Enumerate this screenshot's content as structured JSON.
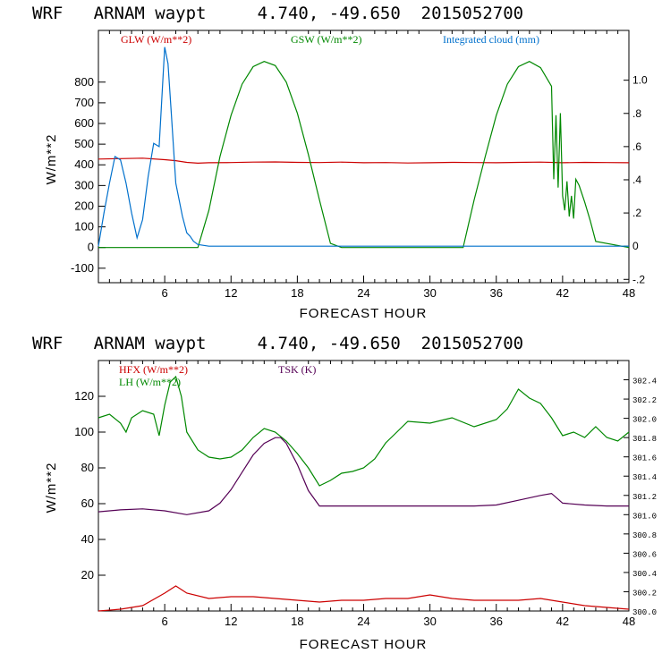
{
  "chart_data": [
    {
      "type": "line",
      "title": "WRF   ARNAM waypt     4.740, -49.650  2015052700",
      "xlabel": "FORECAST HOUR",
      "ylabel": "W/m**2",
      "xlim": [
        0,
        48
      ],
      "ylim": [
        -170,
        1050
      ],
      "y2lim": [
        -0.22,
        1.3
      ],
      "x_ticks": [
        "6",
        "12",
        "18",
        "24",
        "30",
        "36",
        "42",
        "48"
      ],
      "y_ticks": [
        "-100",
        "0",
        "100",
        "200",
        "300",
        "400",
        "500",
        "600",
        "700",
        "800"
      ],
      "y2_ticks": [
        "-.2",
        "0",
        ".2",
        ".4",
        ".6",
        ".8",
        "1.0"
      ],
      "grid": false,
      "legend_position": "top",
      "colors": {
        "glw": "#cc0000",
        "gsw": "#008800",
        "cloud": "#0070cc"
      },
      "series": [
        {
          "name": "GLW (W/m**2)",
          "axis": "left",
          "x": [
            0,
            2,
            4,
            6,
            7,
            8,
            9,
            10,
            12,
            14,
            16,
            18,
            20,
            22,
            24,
            26,
            28,
            30,
            32,
            34,
            36,
            38,
            40,
            42,
            44,
            46,
            48
          ],
          "y": [
            428,
            430,
            432,
            425,
            420,
            412,
            408,
            410,
            411,
            413,
            414,
            412,
            411,
            413,
            410,
            411,
            409,
            410,
            412,
            411,
            410,
            412,
            413,
            410,
            412,
            411,
            410
          ]
        },
        {
          "name": "GSW (W/m**2)",
          "axis": "left",
          "x": [
            0,
            9,
            10,
            11,
            12,
            13,
            14,
            15,
            16,
            17,
            18,
            19,
            20,
            21,
            22,
            33,
            34,
            35,
            36,
            37,
            38,
            39,
            40,
            41,
            41.2,
            41.4,
            41.6,
            41.8,
            42,
            42.2,
            42.4,
            42.6,
            42.8,
            43,
            43.2,
            43.5,
            44,
            44.5,
            45,
            48
          ],
          "y": [
            0,
            0,
            180,
            440,
            640,
            790,
            875,
            900,
            880,
            800,
            650,
            450,
            230,
            20,
            0,
            0,
            230,
            440,
            640,
            790,
            875,
            900,
            870,
            780,
            330,
            640,
            290,
            650,
            250,
            180,
            320,
            150,
            250,
            140,
            330,
            300,
            220,
            130,
            30,
            0
          ]
        },
        {
          "name": "Integrated cloud (mm)",
          "axis": "right",
          "x": [
            0,
            0.5,
            1,
            1.5,
            2,
            2.5,
            3,
            3.5,
            4,
            4.5,
            5,
            5.5,
            6,
            6.3,
            6.6,
            7,
            7.3,
            7.6,
            8,
            8.3,
            8.6,
            9,
            10,
            48
          ],
          "y": [
            0.0,
            0.2,
            0.38,
            0.54,
            0.52,
            0.38,
            0.2,
            0.05,
            0.16,
            0.42,
            0.62,
            0.6,
            1.2,
            1.1,
            0.8,
            0.38,
            0.28,
            0.18,
            0.08,
            0.06,
            0.03,
            0.01,
            0.0,
            0.0
          ]
        }
      ]
    },
    {
      "type": "line",
      "title": "WRF   ARNAM waypt     4.740, -49.650  2015052700",
      "xlabel": "FORECAST HOUR",
      "ylabel": "W/m**2",
      "xlim": [
        0,
        48
      ],
      "ylim": [
        0,
        140
      ],
      "y2lim": [
        300.0,
        302.6
      ],
      "x_ticks": [
        "6",
        "12",
        "18",
        "24",
        "30",
        "36",
        "42",
        "48"
      ],
      "y_ticks": [
        "20",
        "40",
        "60",
        "80",
        "100",
        "120"
      ],
      "y2_ticks": [
        "300.0",
        "300.2",
        "300.4",
        "300.6",
        "300.8",
        "301.0",
        "301.2",
        "301.4",
        "301.6",
        "301.8",
        "302.0",
        "302.2",
        "302.4"
      ],
      "grid": false,
      "legend_position": "top-left",
      "colors": {
        "hfx": "#cc0000",
        "lh": "#008800",
        "tsk": "#550055"
      },
      "series": [
        {
          "name": "HFX (W/m**2)",
          "axis": "left",
          "x": [
            0,
            2,
            4,
            6,
            7,
            8,
            10,
            12,
            14,
            16,
            18,
            20,
            22,
            24,
            26,
            28,
            30,
            32,
            34,
            36,
            38,
            40,
            42,
            44,
            46,
            48
          ],
          "y": [
            0,
            1,
            3,
            10,
            14,
            10,
            7,
            8,
            8,
            7,
            6,
            5,
            6,
            6,
            7,
            7,
            9,
            7,
            6,
            6,
            6,
            7,
            5,
            3,
            2,
            1
          ]
        },
        {
          "name": "LH (W/m**2)",
          "axis": "left",
          "x": [
            0,
            1,
            2,
            2.5,
            3,
            4,
            5,
            5.5,
            6,
            6.5,
            7,
            7.5,
            8,
            9,
            10,
            11,
            12,
            13,
            14,
            15,
            16,
            17,
            18,
            19,
            20,
            21,
            22,
            23,
            24,
            25,
            26,
            27,
            28,
            30,
            32,
            34,
            36,
            37,
            38,
            39,
            40,
            41,
            42,
            43,
            44,
            45,
            46,
            47,
            48
          ],
          "y": [
            108,
            110,
            105,
            100,
            108,
            112,
            110,
            98,
            115,
            128,
            131,
            120,
            100,
            90,
            86,
            85,
            86,
            90,
            97,
            102,
            100,
            95,
            88,
            80,
            70,
            73,
            77,
            78,
            80,
            85,
            94,
            100,
            106,
            105,
            108,
            103,
            107,
            113,
            124,
            119,
            116,
            108,
            98,
            100,
            97,
            103,
            97,
            95,
            100
          ]
        },
        {
          "name": "TSK (K)",
          "axis": "right",
          "x": [
            0,
            2,
            4,
            6,
            8,
            10,
            11,
            12,
            13,
            14,
            15,
            16,
            16.5,
            17,
            18,
            19,
            20,
            22,
            24,
            26,
            28,
            30,
            32,
            34,
            36,
            38,
            40,
            41,
            42,
            44,
            46,
            48
          ],
          "y": [
            301.03,
            301.05,
            301.06,
            301.04,
            301.0,
            301.04,
            301.12,
            301.26,
            301.44,
            301.62,
            301.74,
            301.8,
            301.8,
            301.74,
            301.52,
            301.25,
            301.09,
            301.09,
            301.09,
            301.09,
            301.09,
            301.09,
            301.09,
            301.09,
            301.1,
            301.15,
            301.2,
            301.22,
            301.12,
            301.1,
            301.09,
            301.09
          ]
        }
      ]
    }
  ]
}
